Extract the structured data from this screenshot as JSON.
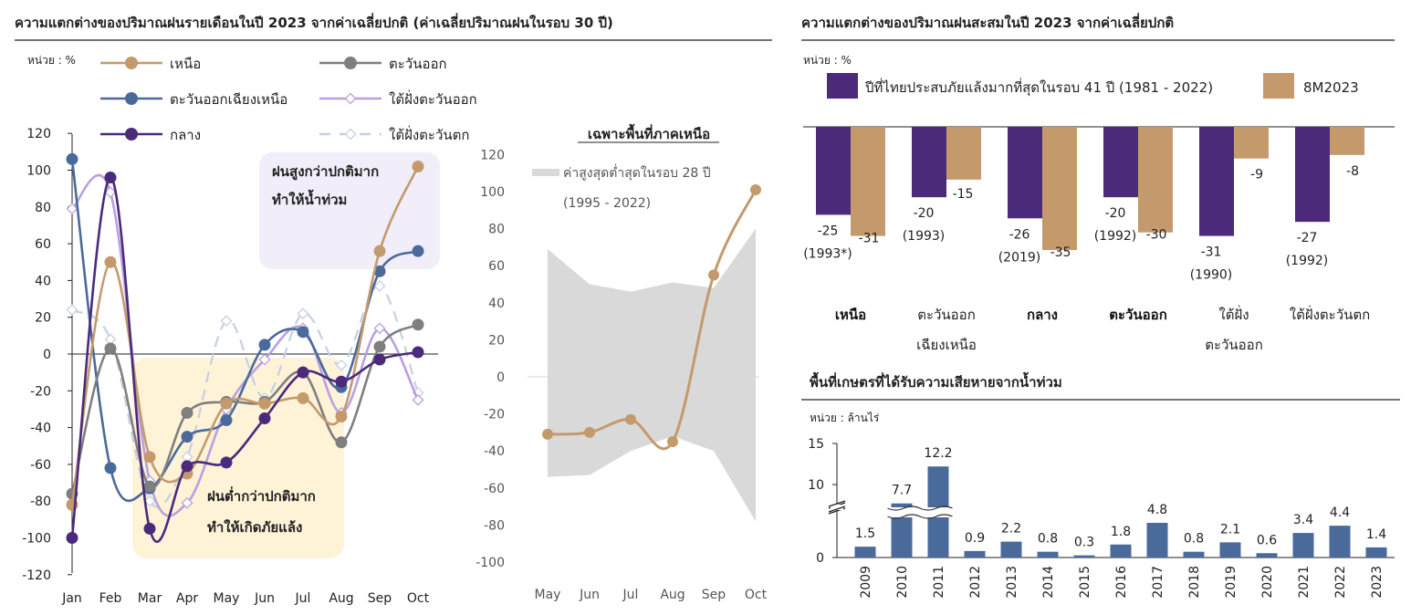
{
  "chart_data": [
    {
      "type": "line",
      "title": "ความแตกต่างของปริมาณฝนรายเดือนในปี 2023 จากค่าเฉลี่ยปกติ (ค่าเฉลี่ยปริมาณฝนในรอบ 30 ปี)",
      "unit": "หน่วย : %",
      "categories": [
        "Jan",
        "Feb",
        "Mar",
        "Apr",
        "May",
        "Jun",
        "Jul",
        "Aug",
        "Sep",
        "Oct"
      ],
      "ylim": [
        -120,
        120
      ],
      "yticks": [
        "120",
        "100",
        "80",
        "60",
        "40",
        "20",
        "0",
        "-20",
        "-40",
        "-60",
        "-80",
        "-100",
        "-120"
      ],
      "series": [
        {
          "name": "เหนือ",
          "color": "#C49A6C",
          "style": "solid",
          "values": [
            -82,
            50,
            -56,
            -65,
            -27,
            -27,
            -24,
            -34,
            56,
            102
          ]
        },
        {
          "name": "ตะวันออก",
          "color": "#7F7F7F",
          "style": "solid",
          "values": [
            -76,
            3,
            -72,
            -32,
            -26,
            -26,
            -10,
            -48,
            4,
            16
          ]
        },
        {
          "name": "ตะวันออกเฉียงเหนือ",
          "color": "#4A6A9B",
          "style": "solid",
          "values": [
            106,
            -62,
            -73,
            -45,
            -36,
            5,
            12,
            -18,
            45,
            56
          ]
        },
        {
          "name": "ใต้ฝั่งตะวันออก",
          "color": "#B9A0E0",
          "style": "solid-diamond",
          "values": [
            79,
            88,
            -69,
            -81,
            -30,
            -3,
            14,
            -32,
            14,
            -25
          ]
        },
        {
          "name": "กลาง",
          "color": "#4B2A7B",
          "style": "solid",
          "values": [
            -100,
            96,
            -95,
            -61,
            -59,
            -35,
            -10,
            -15,
            -3,
            1
          ]
        },
        {
          "name": "ใต้ฝั่งตะวันตก",
          "color": "#C5D0E2",
          "style": "dashed-diamond",
          "values": [
            24,
            8,
            -80,
            -56,
            18,
            -24,
            22,
            -6,
            37,
            -21
          ]
        }
      ],
      "annotations": [
        {
          "text": "ฝนสูงกว่าปกติมาก",
          "text2": "ทำให้น้ำท่วม",
          "color": "#F1EEFA"
        },
        {
          "text": "ฝนต่ำกว่าปกติมาก",
          "text2": "ทำให้เกิดภัยแล้ง",
          "color": "#FEF3D7"
        }
      ]
    },
    {
      "type": "area",
      "title": "เฉพาะพื้นที่ภาคเหนือ",
      "categories": [
        "May",
        "Jun",
        "Jul",
        "Aug",
        "Sep",
        "Oct"
      ],
      "ylim": [
        -100,
        120
      ],
      "yticks": [
        "120",
        "100",
        "80",
        "60",
        "40",
        "20",
        "0",
        "-20",
        "-40",
        "-60",
        "-80",
        "-100"
      ],
      "band_label": "ค่าสูงสุดต่ำสุดในรอบ 28 ปี",
      "band_label2": "(1995 - 2022)",
      "band_max": [
        69,
        50,
        46,
        51,
        48,
        80
      ],
      "band_min": [
        -54,
        -53,
        -40,
        -32,
        -40,
        -78
      ],
      "series": [
        {
          "name": "เหนือ",
          "color": "#C49A6C",
          "values": [
            -31,
            -30,
            -23,
            -35,
            55,
            101
          ]
        }
      ]
    },
    {
      "type": "bar",
      "title": "ความแตกต่างของปริมาณฝนสะสมในปี 2023 จากค่าเฉลี่ยปกติ",
      "unit": "หน่วย : %",
      "categories": [
        {
          "line1": "เหนือ",
          "line2": "",
          "bold": true
        },
        {
          "line1": "ตะวันออก",
          "line2": "เฉียงเหนือ",
          "bold": false
        },
        {
          "line1": "กลาง",
          "line2": "",
          "bold": true
        },
        {
          "line1": "ตะวันออก",
          "line2": "",
          "bold": true
        },
        {
          "line1": "ใต้ฝั่ง",
          "line2": "ตะวันออก",
          "bold": false
        },
        {
          "line1": "ใต้ฝั่งตะวันตก",
          "line2": "",
          "bold": false
        }
      ],
      "series": [
        {
          "name": "ปีที่ไทยประสบภัยแล้งมากที่สุดในรอบ 41 ปี (1981 - 2022)",
          "color": "#4B2A7B",
          "values": [
            -25,
            -20,
            -26,
            -20,
            -31,
            -27
          ],
          "labels": [
            "-25",
            "-20",
            "-26",
            "-20",
            "-31",
            "-27"
          ],
          "years": [
            "(1993*)",
            "(1993)",
            "(2019)",
            "(1992)",
            "(1990)",
            "(1992)"
          ]
        },
        {
          "name": "8M2023",
          "color": "#C49A6C",
          "values": [
            -31,
            -15,
            -35,
            -30,
            -9,
            -8
          ],
          "labels": [
            "-31",
            "-15",
            "-35",
            "-30",
            "-9",
            "-8"
          ]
        }
      ]
    },
    {
      "type": "bar",
      "title": "พื้นที่เกษตรที่ได้รับความเสียหายจากน้ำท่วม",
      "unit": "หน่วย : ล้านไร่",
      "categories": [
        "2009",
        "2010",
        "2011",
        "2012",
        "2013",
        "2014",
        "2015",
        "2016",
        "2017",
        "2018",
        "2019",
        "2020",
        "2021",
        "2022",
        "2023"
      ],
      "values": [
        1.5,
        7.7,
        12.2,
        0.9,
        2.2,
        0.8,
        0.3,
        1.8,
        4.8,
        0.8,
        2.1,
        0.6,
        3.4,
        4.4,
        1.4
      ],
      "labels": [
        "1.5",
        "7.7",
        "12.2",
        "0.9",
        "2.2",
        "0.8",
        "0.3",
        "1.8",
        "4.8",
        "0.8",
        "2.1",
        "0.6",
        "3.4",
        "4.4",
        "1.4"
      ],
      "yticks": [
        "15",
        "10",
        "0"
      ],
      "axis_break": true,
      "color": "#4A6A9B"
    }
  ]
}
